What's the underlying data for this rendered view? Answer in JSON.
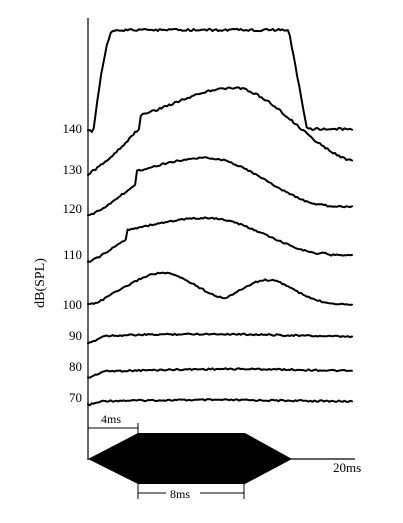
{
  "chart_data": {
    "type": "line",
    "title": "",
    "ylabel": "dB(SPL)",
    "x_end_label": "20ms",
    "stimulus": {
      "label": "stimulus envelope",
      "rise_label": "4ms",
      "plateau_label": "8ms",
      "rise_ms": 4,
      "plateau_ms": 8,
      "total_ms": 20
    },
    "series": [
      {
        "level": "70",
        "shape": "flat",
        "rise": 0.04,
        "peak": 0.45,
        "offset": 0.85
      },
      {
        "level": "80",
        "shape": "flat",
        "rise": 0.04,
        "peak": 0.55,
        "offset": 0.85
      },
      {
        "level": "90",
        "shape": "flat",
        "rise": 0.05,
        "peak": 0.45,
        "offset": 0.85
      },
      {
        "level": "100",
        "shape": "bumped",
        "rise": 0.1,
        "peak": 0.3,
        "offset": 0.9
      },
      {
        "level": "110",
        "shape": "rounded",
        "rise": 0.15,
        "peak": 0.45,
        "offset": 0.9
      },
      {
        "level": "120",
        "shape": "rounded",
        "rise": 0.18,
        "peak": 0.45,
        "offset": 0.9
      },
      {
        "level": "130",
        "shape": "rounded",
        "rise": 0.2,
        "peak": 0.55,
        "offset": 0.8
      },
      {
        "level": "140",
        "shape": "plateau",
        "rise": 0.1,
        "peak": 0.5,
        "offset": 0.8
      }
    ],
    "grid": false,
    "legend": "none"
  }
}
